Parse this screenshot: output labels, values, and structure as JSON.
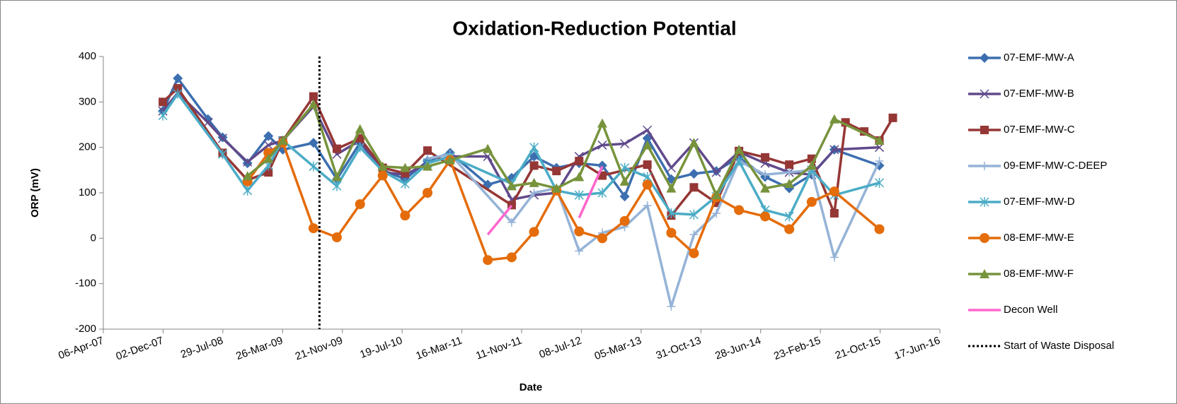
{
  "chart_data": {
    "type": "line",
    "title": "Oxidation-Reduction Potential",
    "x_label": "Date",
    "y_label": "ORP (mV)",
    "xlim": [
      "2007-04-06",
      "2016-06-17"
    ],
    "xticks": [
      {
        "value": "2007-04-06",
        "label": "06-Apr-07"
      },
      {
        "value": "2007-12-02",
        "label": "02-Dec-07"
      },
      {
        "value": "2008-07-29",
        "label": "29-Jul-08"
      },
      {
        "value": "2009-03-26",
        "label": "26-Mar-09"
      },
      {
        "value": "2009-11-21",
        "label": "21-Nov-09"
      },
      {
        "value": "2010-07-19",
        "label": "19-Jul-10"
      },
      {
        "value": "2011-03-16",
        "label": "16-Mar-11"
      },
      {
        "value": "2011-11-11",
        "label": "11-Nov-11"
      },
      {
        "value": "2012-07-08",
        "label": "08-Jul-12"
      },
      {
        "value": "2013-03-05",
        "label": "05-Mar-13"
      },
      {
        "value": "2013-10-31",
        "label": "31-Oct-13"
      },
      {
        "value": "2014-06-28",
        "label": "28-Jun-14"
      },
      {
        "value": "2015-02-23",
        "label": "23-Feb-15"
      },
      {
        "value": "2015-10-21",
        "label": "21-Oct-15"
      },
      {
        "value": "2016-06-17",
        "label": "17-Jun-16"
      }
    ],
    "ylim": [
      -200,
      400
    ],
    "yticks": [
      -200,
      -100,
      0,
      100,
      200,
      300,
      400
    ],
    "grid": false,
    "legend": "right",
    "series": [
      {
        "name": "07-EMF-MW-A",
        "color": "#3c6fb0",
        "marker": "diamond",
        "x": [
          "2007-12-01",
          "2008-01-30",
          "2008-05-30",
          "2008-07-28",
          "2008-11-05",
          "2009-01-28",
          "2009-03-27",
          "2009-07-28",
          "2009-10-30",
          "2010-01-31",
          "2010-05-02",
          "2010-07-31",
          "2010-10-29",
          "2011-01-28",
          "2011-06-28",
          "2011-10-02",
          "2011-12-31",
          "2012-03-30",
          "2012-06-29",
          "2012-09-30",
          "2012-12-29",
          "2013-03-30",
          "2013-07-04",
          "2013-10-03",
          "2014-01-01",
          "2014-04-02",
          "2014-07-16",
          "2014-10-21",
          "2015-01-19",
          "2015-04-20",
          "2015-10-18"
        ],
        "values": [
          280,
          352,
          262,
          222,
          165,
          225,
          195,
          210,
          130,
          210,
          150,
          130,
          170,
          188,
          118,
          133,
          180,
          155,
          165,
          160,
          92,
          220,
          130,
          142,
          148,
          178,
          135,
          110,
          140,
          195,
          160
        ]
      },
      {
        "name": "07-EMF-MW-B",
        "color": "#604a8b",
        "marker": "x",
        "x": [
          "2007-12-01",
          "2008-01-30",
          "2008-05-30",
          "2008-07-28",
          "2008-11-05",
          "2009-01-28",
          "2009-03-27",
          "2009-07-28",
          "2009-10-30",
          "2010-01-31",
          "2010-05-02",
          "2010-07-31",
          "2010-10-29",
          "2011-01-28",
          "2011-06-28",
          "2011-10-02",
          "2011-12-31",
          "2012-03-30",
          "2012-06-29",
          "2012-09-30",
          "2012-12-29",
          "2013-03-30",
          "2013-07-04",
          "2013-10-03",
          "2014-01-01",
          "2014-04-02",
          "2014-07-16",
          "2014-10-21",
          "2015-01-19",
          "2015-04-20",
          "2015-10-18"
        ],
        "values": [
          280,
          320,
          255,
          220,
          168,
          205,
          215,
          290,
          185,
          215,
          145,
          140,
          165,
          180,
          180,
          85,
          95,
          100,
          180,
          205,
          208,
          238,
          155,
          210,
          145,
          190,
          165,
          145,
          140,
          195,
          200
        ]
      },
      {
        "name": "07-EMF-MW-C",
        "color": "#953735",
        "marker": "square",
        "x": [
          "2007-12-01",
          "2008-01-30",
          "2008-07-28",
          "2008-11-05",
          "2009-01-28",
          "2009-03-27",
          "2009-07-28",
          "2009-10-30",
          "2010-01-31",
          "2010-05-02",
          "2010-07-31",
          "2010-10-29",
          "2011-10-02",
          "2011-12-31",
          "2012-03-30",
          "2012-06-29",
          "2012-09-30",
          "2013-03-30",
          "2013-07-04",
          "2013-10-03",
          "2014-01-01",
          "2014-04-02",
          "2014-07-16",
          "2014-10-21",
          "2015-01-19",
          "2015-04-20",
          "2015-06-04",
          "2015-08-18",
          "2015-10-18",
          "2015-12-11"
        ],
        "values": [
          300,
          330,
          188,
          128,
          145,
          215,
          312,
          197,
          220,
          155,
          143,
          193,
          73,
          160,
          148,
          170,
          138,
          162,
          50,
          112,
          78,
          192,
          178,
          162,
          175,
          55,
          255,
          235,
          215,
          265
        ]
      },
      {
        "name": "09-EMF-MW-C-DEEP",
        "color": "#95b3d7",
        "marker": "plus",
        "x": [
          "2010-10-29",
          "2011-01-28",
          "2011-10-02",
          "2011-12-31",
          "2012-03-30",
          "2012-06-29",
          "2012-09-30",
          "2012-12-29",
          "2013-03-30",
          "2013-07-04",
          "2013-10-03",
          "2014-01-01",
          "2014-04-02",
          "2014-07-16",
          "2014-10-21",
          "2015-01-19",
          "2015-04-20",
          "2015-10-18"
        ],
        "values": [
          175,
          185,
          35,
          100,
          110,
          -28,
          12,
          25,
          72,
          -150,
          8,
          55,
          170,
          140,
          145,
          150,
          -42,
          170
        ]
      },
      {
        "name": "07-EMF-MW-D",
        "color": "#4bacc6",
        "marker": "asterisk",
        "x": [
          "2007-12-01",
          "2008-01-30",
          "2008-07-28",
          "2008-11-05",
          "2009-01-28",
          "2009-03-27",
          "2009-07-28",
          "2009-10-30",
          "2010-01-31",
          "2010-05-02",
          "2010-07-31",
          "2010-10-29",
          "2011-01-28",
          "2011-10-02",
          "2011-12-31",
          "2012-03-30",
          "2012-06-29",
          "2012-09-30",
          "2012-12-29",
          "2013-03-30",
          "2013-07-04",
          "2013-10-03",
          "2014-01-01",
          "2014-04-02",
          "2014-07-16",
          "2014-10-21",
          "2015-01-19",
          "2015-04-20",
          "2015-10-18"
        ],
        "values": [
          270,
          318,
          185,
          105,
          160,
          215,
          158,
          115,
          200,
          148,
          120,
          165,
          180,
          120,
          200,
          105,
          95,
          100,
          155,
          135,
          55,
          52,
          92,
          170,
          62,
          48,
          150,
          95,
          122
        ]
      },
      {
        "name": "08-EMF-MW-E",
        "color": "#e46c0a",
        "marker": "circle",
        "x": [
          "2008-11-05",
          "2009-01-28",
          "2009-03-27",
          "2009-07-28",
          "2009-10-30",
          "2010-01-31",
          "2010-05-02",
          "2010-07-31",
          "2010-10-29",
          "2011-01-28",
          "2011-06-28",
          "2011-10-02",
          "2011-12-31",
          "2012-03-30",
          "2012-06-29",
          "2012-09-30",
          "2012-12-29",
          "2013-03-30",
          "2013-07-04",
          "2013-10-03",
          "2014-01-01",
          "2014-04-02",
          "2014-07-16",
          "2014-10-21",
          "2015-01-19",
          "2015-04-20",
          "2015-10-18"
        ],
        "values": [
          125,
          188,
          210,
          22,
          2,
          75,
          138,
          50,
          100,
          172,
          -48,
          -42,
          14,
          105,
          15,
          0,
          38,
          118,
          12,
          -33,
          90,
          62,
          48,
          20,
          80,
          103,
          20
        ]
      },
      {
        "name": "08-EMF-MW-F",
        "color": "#77933c",
        "marker": "triangle",
        "x": [
          "2008-11-05",
          "2009-01-28",
          "2009-03-27",
          "2009-07-28",
          "2009-10-30",
          "2010-01-31",
          "2010-05-02",
          "2010-07-31",
          "2010-10-29",
          "2011-01-28",
          "2011-06-28",
          "2011-10-02",
          "2011-12-31",
          "2012-03-30",
          "2012-06-29",
          "2012-09-30",
          "2012-12-29",
          "2013-03-30",
          "2013-07-04",
          "2013-10-03",
          "2014-01-01",
          "2014-04-02",
          "2014-07-16",
          "2014-10-21",
          "2015-01-19",
          "2015-04-20",
          "2015-10-18"
        ],
        "values": [
          137,
          175,
          215,
          295,
          135,
          240,
          158,
          155,
          158,
          172,
          197,
          115,
          122,
          110,
          135,
          253,
          125,
          205,
          110,
          210,
          95,
          195,
          110,
          120,
          160,
          262,
          215
        ]
      },
      {
        "name": "Decon Well",
        "color": "#ff66cc",
        "marker": "none",
        "x": [
          "2011-06-28",
          "2011-10-02",
          "2012-03-30",
          "2012-06-29",
          "2012-09-30"
        ],
        "values": [
          8,
          72,
          null,
          45,
          158
        ]
      }
    ],
    "vline": {
      "name": "Start of Waste Disposal",
      "x": "2009-08-21",
      "color": "#000000"
    }
  }
}
